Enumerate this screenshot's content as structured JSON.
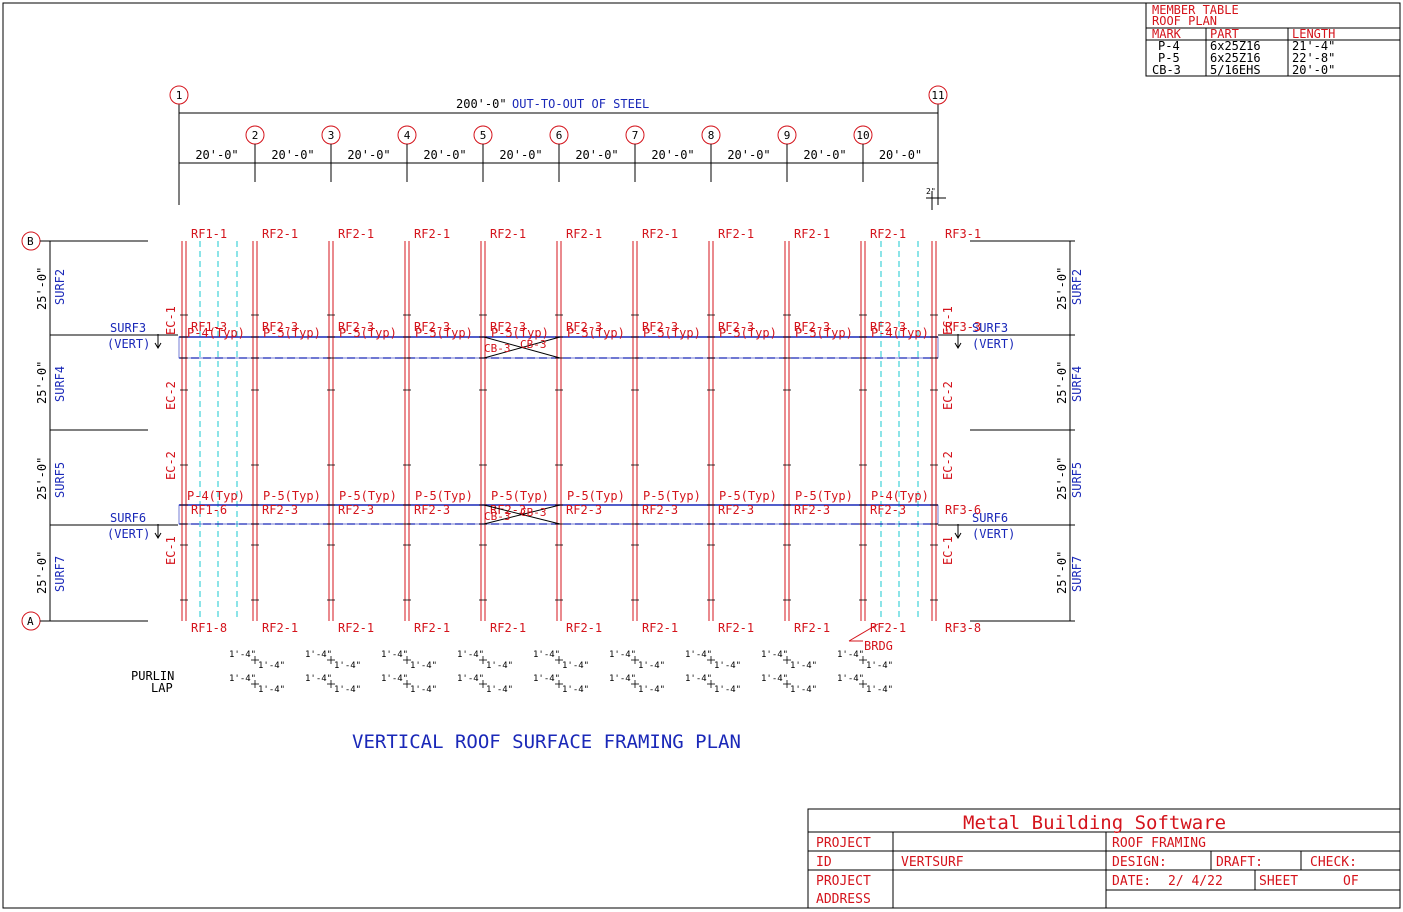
{
  "member_table": {
    "title": "MEMBER TABLE",
    "subtitle": "ROOF PLAN",
    "headers": [
      "MARK",
      "PART",
      "LENGTH"
    ],
    "rows": [
      [
        "P-4",
        "6x25Z16",
        "21'-4\""
      ],
      [
        "P-5",
        "6x25Z16",
        "22'-8\""
      ],
      [
        "CB-3",
        "5/16EHS",
        "20'-0\""
      ]
    ]
  },
  "dimensions": {
    "overall": "200'-0\"",
    "overall_note": "OUT-TO-OUT OF STEEL",
    "bay": "20'-0\"",
    "end_offset": "2\"",
    "surf_height": "25'-0\""
  },
  "grid_columns": [
    "1",
    "2",
    "3",
    "4",
    "5",
    "6",
    "7",
    "8",
    "9",
    "10",
    "11"
  ],
  "grid_rows": {
    "top": "B",
    "bottom": "A"
  },
  "frame_marks_top": [
    "RF1-1",
    "RF2-1",
    "RF2-1",
    "RF2-1",
    "RF2-1",
    "RF2-1",
    "RF2-1",
    "RF2-1",
    "RF2-1",
    "RF2-1",
    "RF3-1"
  ],
  "frame_marks_bottom": [
    "RF1-8",
    "RF2-1",
    "RF2-1",
    "RF2-1",
    "RF2-1",
    "RF2-1",
    "RF2-1",
    "RF2-1",
    "RF2-1",
    "RF2-1",
    "RF3-8"
  ],
  "frame_marks_upper_eave": [
    "RF1-3",
    "RF2-3",
    "RF2-3",
    "RF2-3",
    "RF2-3",
    "RF2-3",
    "RF2-3",
    "RF2-3",
    "RF2-3",
    "RF2-3",
    "RF3-3"
  ],
  "frame_marks_lower_eave": [
    "RF1-6",
    "RF2-3",
    "RF2-3",
    "RF2-3",
    "RF2-3",
    "RF2-3",
    "RF2-3",
    "RF2-3",
    "RF2-3",
    "RF2-3",
    "RF3-6"
  ],
  "purlin_marks_upper": [
    "P-4(Typ)",
    "P-5(Typ)",
    "P-5(Typ)",
    "P-5(Typ)",
    "P-5(Typ)",
    "P-5(Typ)",
    "P-5(Typ)",
    "P-5(Typ)",
    "P-5(Typ)",
    "P-4(Typ)"
  ],
  "purlin_marks_lower": [
    "P-4(Typ)",
    "P-5(Typ)",
    "P-5(Typ)",
    "P-5(Typ)",
    "P-5(Typ)",
    "P-5(Typ)",
    "P-5(Typ)",
    "P-5(Typ)",
    "P-5(Typ)",
    "P-4(Typ)"
  ],
  "cable_brace": "CB-3",
  "surfaces": {
    "left": [
      "SURF2",
      "SURF4",
      "SURF5",
      "SURF7"
    ],
    "right": [
      "SURF2",
      "SURF4",
      "SURF5",
      "SURF7"
    ],
    "upper_vert": "SURF3",
    "lower_vert": "SURF6",
    "vert_note": "(VERT)"
  },
  "eave_members": [
    "EC-1",
    "EC-2",
    "EC-2",
    "EC-1"
  ],
  "bridging": "BRDG",
  "purlin_lap": {
    "label_line1": "PURLIN",
    "label_line2": "LAP",
    "value": "1'-4\""
  },
  "plan_title": "VERTICAL ROOF SURFACE FRAMING PLAN",
  "title_block": {
    "company": "Metal Building Software",
    "project_label": "PROJECT",
    "id_label": "ID",
    "id_value": "VERTSURF",
    "address_label_line1": "PROJECT",
    "address_label_line2": "ADDRESS",
    "drawing_title": "ROOF FRAMING",
    "design_label": "DESIGN:",
    "draft_label": "DRAFT:",
    "check_label": "CHECK:",
    "date_label": "DATE:",
    "date_value": "2/ 4/22",
    "sheet_label": "SHEET",
    "of_label": "OF"
  },
  "colors": {
    "frame": "#d4141c",
    "purlin": "#1a28b8",
    "bridging_line": "#19c8d2",
    "linework": "#000000"
  }
}
